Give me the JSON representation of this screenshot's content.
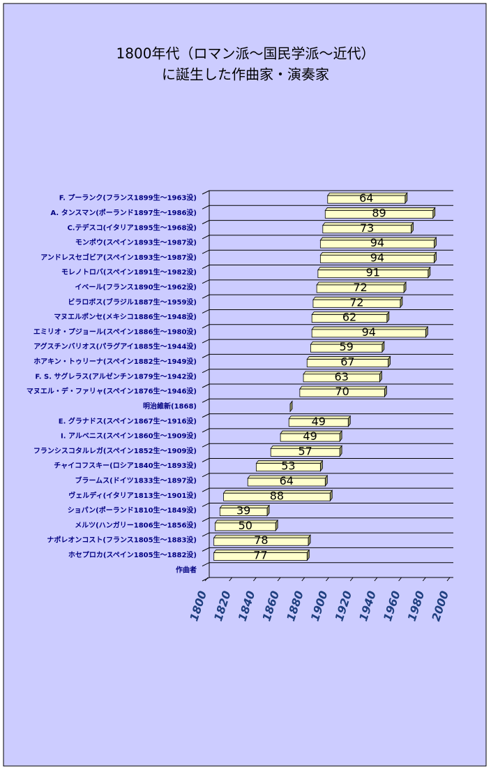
{
  "chart_data": {
    "type": "floating-bar",
    "title": [
      "1800年代（ロマン派～国民学派～近代）",
      "に誕生した作曲家・演奏家"
    ],
    "categories": [
      "F. プーランク(フランス1899生～1963没)",
      "A. タンスマン(ポーランド1897生～1986没)",
      "C.テデスコ(イタリア1895生～1968没)",
      "モンポウ(スペイン1893生～1987没)",
      "アンドレスセゴビア(スペイン1893生～1987没)",
      "モレノトロバ(スペイン1891生～1982没)",
      "イベール(フランス1890生～1962没)",
      "ビラロボス(ブラジル1887生～1959没)",
      "マヌエルポンセ(メキシコ1886生～1948没)",
      "エミリオ・プジョール(スペイン1886生～1980没)",
      "アグスチンバリオス(パラグアイ1885生～1944没)",
      "ホアキン・トゥリーナ(スペイン1882生～1949没)",
      "F. S. サグレラス(アルゼンチン1879生～1942没)",
      "マヌエル・デ・ファリャ(スペイン1876生～1946没)",
      "明治維新(1868)",
      "E. グラナドス(スペイン1867生～1916没)",
      "I. アルベニス(スペイン1860生～1909没)",
      "フランシスコタルレガ(スペイン1852生～1909没)",
      "チャイコフスキー(ロシア1840生～1893没)",
      "ブラームス(ドイツ1833生～1897没)",
      "ヴェルディ(イタリア1813生～1901没)",
      "ショパン(ポーランド1810生～1849没)",
      "メルツ(ハンガリー1806生～1856没)",
      "ナポレオンコスト(フランス1805生～1883没)",
      "ホセプロカ(スペイン1805生～1882没)",
      "作曲者"
    ],
    "series": [
      {
        "values": [
          1899,
          1897,
          1895,
          1893,
          1893,
          1891,
          1890,
          1887,
          1886,
          1886,
          1885,
          1882,
          1879,
          1876,
          1868,
          1867,
          1860,
          1852,
          1840,
          1833,
          1813,
          1810,
          1806,
          1805,
          1805,
          null
        ]
      },
      {
        "color": "#ffffcc",
        "values": [
          64,
          89,
          73,
          94,
          94,
          91,
          72,
          72,
          62,
          94,
          59,
          67,
          63,
          70,
          0,
          49,
          49,
          57,
          53,
          64,
          88,
          39,
          50,
          78,
          77,
          null
        ]
      }
    ],
    "xlim": [
      1800,
      2000
    ],
    "xticks": [
      1800,
      1820,
      1840,
      1860,
      1880,
      1900,
      1920,
      1940,
      1960,
      1980,
      2000
    ]
  }
}
